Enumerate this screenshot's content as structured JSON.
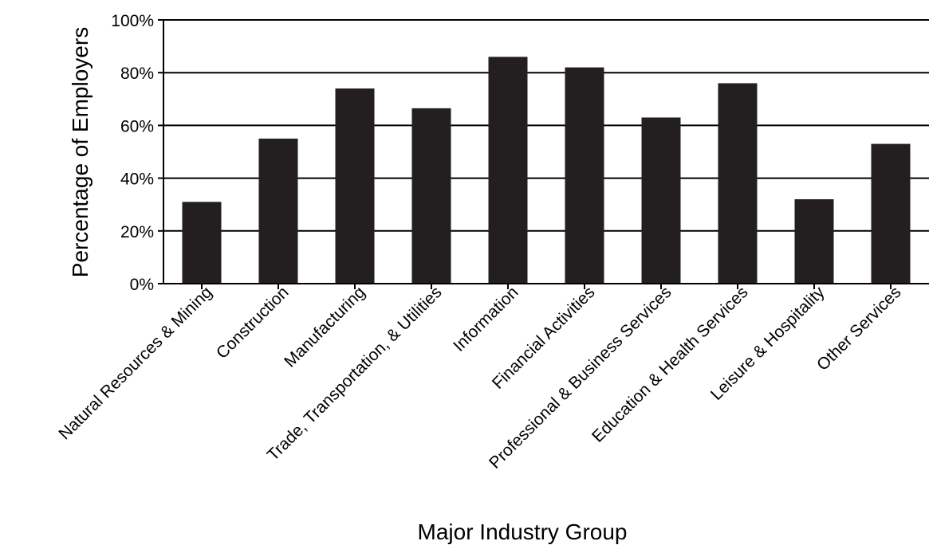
{
  "chart_data": {
    "type": "bar",
    "title": "",
    "xlabel": "Major Industry Group",
    "ylabel": "Percentage of Employers",
    "categories": [
      "Natural Resources & Mining",
      "Construction",
      "Manufacturing",
      "Trade, Transportation, & Utilities",
      "Information",
      "Financial Activities",
      "Professional & Business Services",
      "Education & Health Services",
      "Leisure & Hospitality",
      "Other Services"
    ],
    "values": [
      31,
      55,
      74,
      66.5,
      86,
      82,
      63,
      76,
      32,
      53
    ],
    "ylim": [
      0,
      100
    ],
    "yticks": [
      0,
      20,
      40,
      60,
      80,
      100
    ],
    "ytick_labels": [
      "0%",
      "20%",
      "40%",
      "60%",
      "80%",
      "100%"
    ],
    "grid": true,
    "legend": "none",
    "colors": {
      "bar": "#231f20",
      "axis": "#000000",
      "grid": "#000000"
    }
  }
}
